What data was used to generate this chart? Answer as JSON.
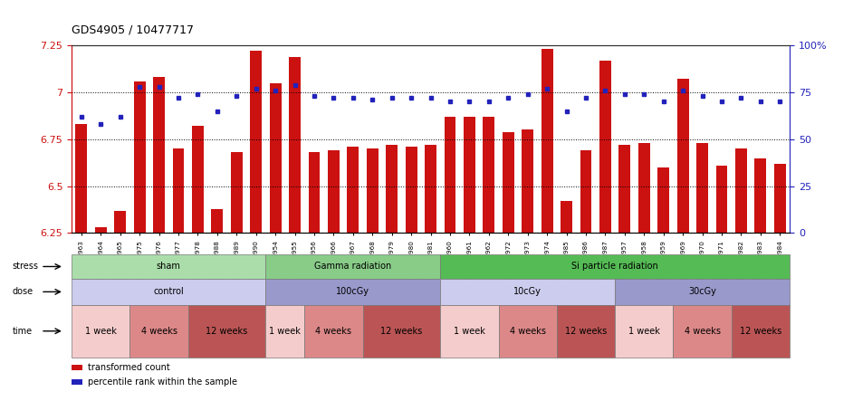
{
  "title": "GDS4905 / 10477717",
  "bar_color": "#cc1111",
  "dot_color": "#2222bb",
  "ylim_left": [
    6.25,
    7.25
  ],
  "ylim_right": [
    0,
    100
  ],
  "yticks_left": [
    6.25,
    6.5,
    6.75,
    7.0,
    7.25
  ],
  "ytick_labels_left": [
    "6.25",
    "6.5",
    "6.75",
    "7",
    "7.25"
  ],
  "yticks_right": [
    0,
    25,
    50,
    75,
    100
  ],
  "ytick_labels_right": [
    "0",
    "25",
    "50",
    "75",
    "100%"
  ],
  "hlines": [
    6.5,
    6.75,
    7.0
  ],
  "sample_ids": [
    "GSM1176963",
    "GSM1176964",
    "GSM1176965",
    "GSM1176975",
    "GSM1176976",
    "GSM1176977",
    "GSM1176978",
    "GSM1176988",
    "GSM1176989",
    "GSM1176990",
    "GSM1176954",
    "GSM1176955",
    "GSM1176956",
    "GSM1176966",
    "GSM1176967",
    "GSM1176968",
    "GSM1176979",
    "GSM1176980",
    "GSM1176981",
    "GSM1176960",
    "GSM1176961",
    "GSM1176962",
    "GSM1176972",
    "GSM1176973",
    "GSM1176974",
    "GSM1176985",
    "GSM1176986",
    "GSM1176987",
    "GSM1176957",
    "GSM1176958",
    "GSM1176959",
    "GSM1176969",
    "GSM1176970",
    "GSM1176971",
    "GSM1176982",
    "GSM1176983",
    "GSM1176984"
  ],
  "bar_values": [
    6.83,
    6.28,
    6.37,
    7.06,
    7.08,
    6.7,
    6.82,
    6.38,
    6.68,
    7.22,
    7.05,
    7.19,
    6.68,
    6.69,
    6.71,
    6.7,
    6.72,
    6.71,
    6.72,
    6.87,
    6.87,
    6.87,
    6.79,
    6.8,
    7.23,
    6.42,
    6.69,
    7.17,
    6.72,
    6.73,
    6.6,
    7.07,
    6.73,
    6.61,
    6.7,
    6.65,
    6.62
  ],
  "dot_values": [
    62,
    58,
    62,
    78,
    78,
    72,
    74,
    65,
    73,
    77,
    76,
    79,
    73,
    72,
    72,
    71,
    72,
    72,
    72,
    70,
    70,
    70,
    72,
    74,
    77,
    65,
    72,
    76,
    74,
    74,
    70,
    76,
    73,
    70,
    72,
    70,
    70
  ],
  "stress_groups": [
    {
      "label": "sham",
      "start": 0,
      "end": 9,
      "color": "#aaddaa"
    },
    {
      "label": "Gamma radiation",
      "start": 10,
      "end": 18,
      "color": "#88cc88"
    },
    {
      "label": "Si particle radiation",
      "start": 19,
      "end": 36,
      "color": "#55bb55"
    }
  ],
  "dose_groups": [
    {
      "label": "control",
      "start": 0,
      "end": 9,
      "color": "#ccccee"
    },
    {
      "label": "100cGy",
      "start": 10,
      "end": 18,
      "color": "#9999cc"
    },
    {
      "label": "10cGy",
      "start": 19,
      "end": 27,
      "color": "#ccccee"
    },
    {
      "label": "30cGy",
      "start": 28,
      "end": 36,
      "color": "#9999cc"
    }
  ],
  "time_groups": [
    {
      "label": "1 week",
      "start": 0,
      "end": 2,
      "color": "#f5cccc"
    },
    {
      "label": "4 weeks",
      "start": 3,
      "end": 5,
      "color": "#dd8888"
    },
    {
      "label": "12 weeks",
      "start": 6,
      "end": 9,
      "color": "#bb5555"
    },
    {
      "label": "1 week",
      "start": 10,
      "end": 11,
      "color": "#f5cccc"
    },
    {
      "label": "4 weeks",
      "start": 12,
      "end": 14,
      "color": "#dd8888"
    },
    {
      "label": "12 weeks",
      "start": 15,
      "end": 18,
      "color": "#bb5555"
    },
    {
      "label": "1 week",
      "start": 19,
      "end": 21,
      "color": "#f5cccc"
    },
    {
      "label": "4 weeks",
      "start": 22,
      "end": 24,
      "color": "#dd8888"
    },
    {
      "label": "12 weeks",
      "start": 25,
      "end": 27,
      "color": "#bb5555"
    },
    {
      "label": "1 week",
      "start": 28,
      "end": 30,
      "color": "#f5cccc"
    },
    {
      "label": "4 weeks",
      "start": 31,
      "end": 33,
      "color": "#dd8888"
    },
    {
      "label": "12 weeks",
      "start": 34,
      "end": 36,
      "color": "#bb5555"
    }
  ],
  "legend_items": [
    {
      "label": "transformed count",
      "color": "#cc1111"
    },
    {
      "label": "percentile rank within the sample",
      "color": "#2222bb"
    }
  ],
  "bg_color": "#ffffff",
  "chart_bg": "#ffffff"
}
